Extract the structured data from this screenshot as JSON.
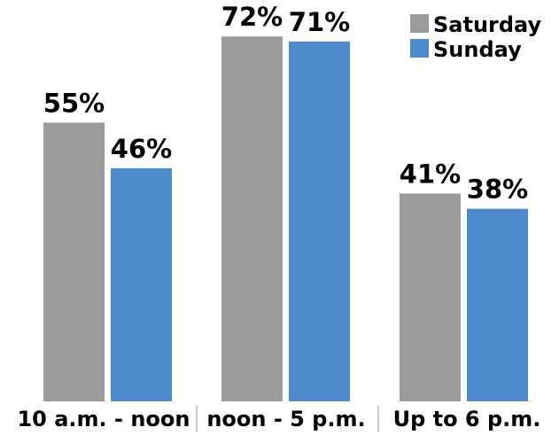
{
  "chart_data": {
    "type": "bar",
    "categories": [
      "10 a.m. - noon",
      "noon - 5 p.m.",
      "Up to 6 p.m."
    ],
    "series": [
      {
        "name": "Saturday",
        "values": [
          55,
          72,
          41
        ],
        "labels": [
          "55%",
          "72%",
          "41%"
        ],
        "color": "#9b9b9b"
      },
      {
        "name": "Sunday",
        "values": [
          46,
          71,
          38
        ],
        "labels": [
          "46%",
          "71%",
          "38%"
        ],
        "color": "#4e8ac9"
      }
    ],
    "title": "",
    "xlabel": "",
    "ylabel": "",
    "ylim": [
      0,
      75
    ],
    "grid": false,
    "legend_position": "top-right",
    "separator_color": "#cccccc"
  }
}
